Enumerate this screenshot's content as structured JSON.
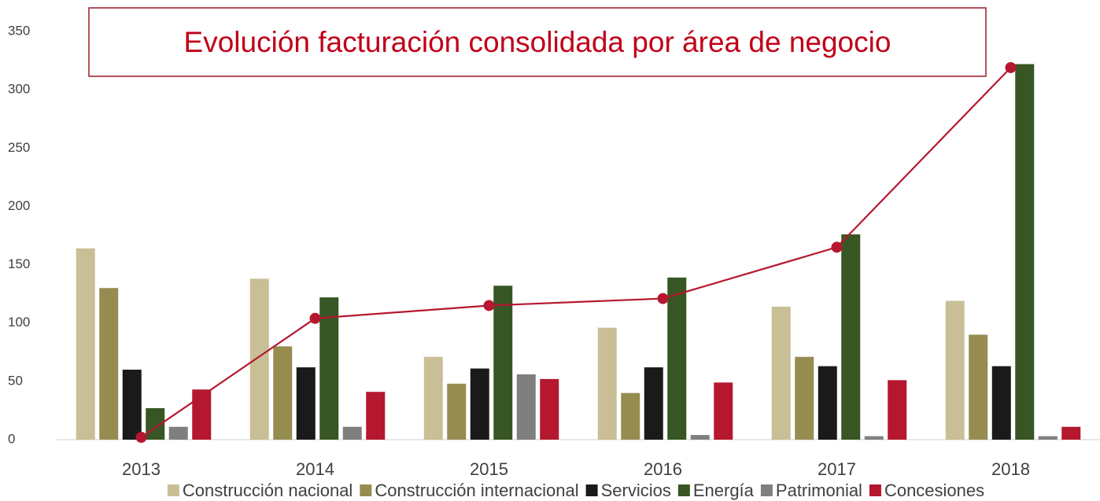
{
  "chart_data": {
    "type": "bar",
    "title": "Evolución facturación consolidada por área de negocio",
    "categories": [
      "2013",
      "2014",
      "2015",
      "2016",
      "2017",
      "2018"
    ],
    "series": [
      {
        "name": "Construcción nacional",
        "color": "#c9bf96",
        "values": [
          164,
          138,
          71,
          96,
          114,
          119
        ]
      },
      {
        "name": "Construcción internacional",
        "color": "#968c50",
        "values": [
          130,
          80,
          48,
          40,
          71,
          90
        ]
      },
      {
        "name": "Servicios",
        "color": "#1a1a1a",
        "values": [
          60,
          62,
          61,
          62,
          63,
          63
        ]
      },
      {
        "name": "Energía",
        "color": "#375623",
        "values": [
          27,
          122,
          132,
          139,
          176,
          322
        ]
      },
      {
        "name": "Patrimonial",
        "color": "#7f7f7f",
        "values": [
          11,
          11,
          56,
          4,
          3,
          3
        ]
      },
      {
        "name": "Concesiones",
        "color": "#b5172f",
        "values": [
          43,
          41,
          52,
          49,
          51,
          11
        ]
      }
    ],
    "line": {
      "color": "#b5172f",
      "values": [
        2,
        104,
        115,
        121,
        165,
        319
      ]
    },
    "ylim": [
      0,
      350
    ],
    "yticks": [
      0,
      50,
      100,
      150,
      200,
      250,
      300,
      350
    ],
    "grid": false,
    "legend": "bottom"
  }
}
